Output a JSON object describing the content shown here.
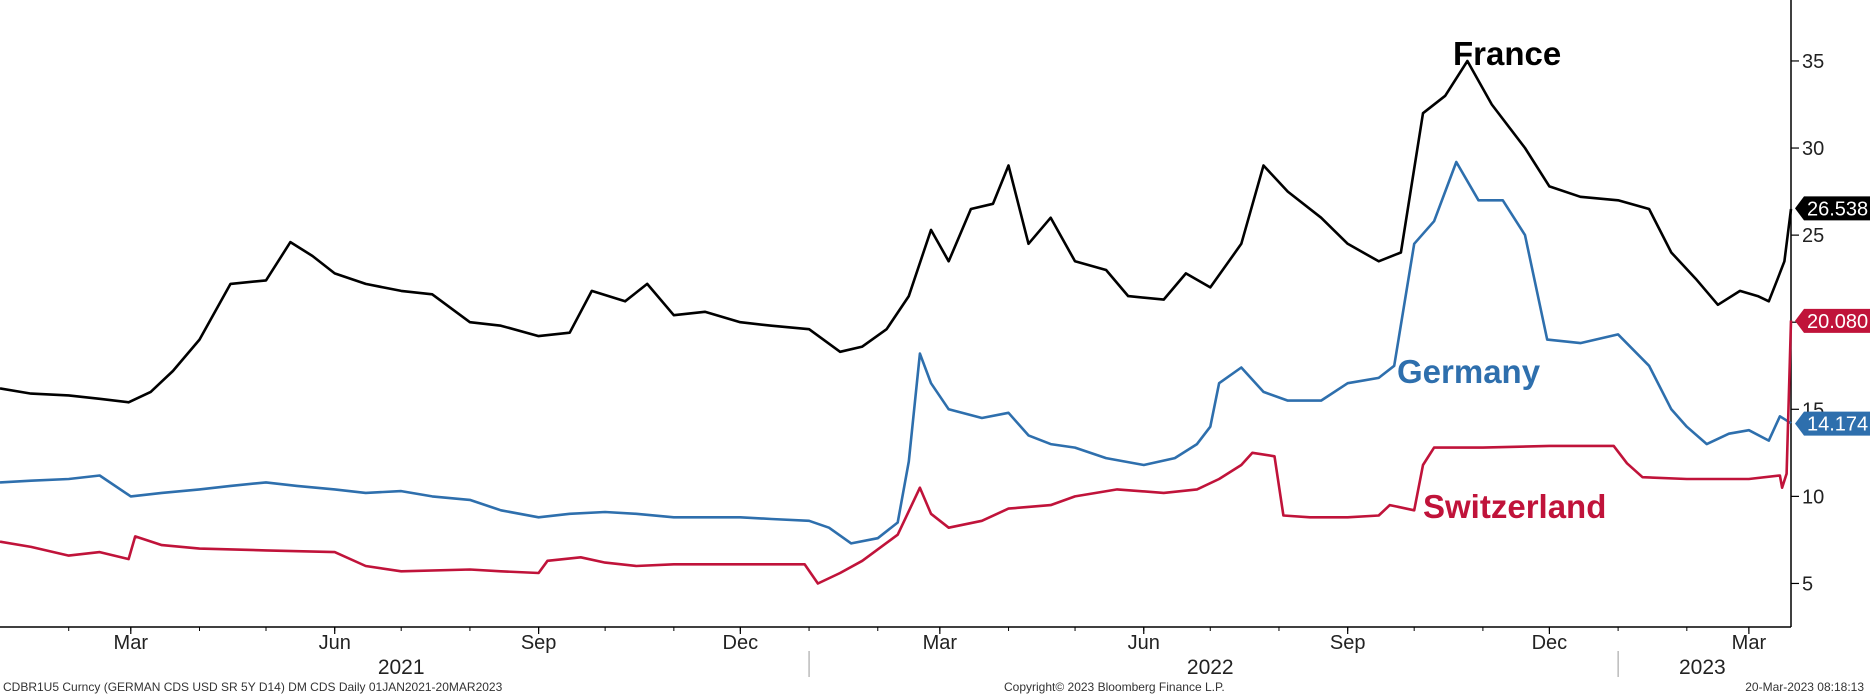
{
  "chart_data": {
    "type": "line",
    "x_range": [
      "2021-01-01",
      "2023-03-20"
    ],
    "ylim": [
      2.5,
      38.5
    ],
    "y_ticks": [
      5,
      10,
      15,
      20,
      25,
      30,
      35
    ],
    "x_ticks": [
      {
        "label": "Mar",
        "date": "2021-03-01"
      },
      {
        "label": "Jun",
        "date": "2021-06-01"
      },
      {
        "label": "Sep",
        "date": "2021-09-01"
      },
      {
        "label": "Dec",
        "date": "2021-12-01"
      },
      {
        "label": "Mar",
        "date": "2022-03-01"
      },
      {
        "label": "Jun",
        "date": "2022-06-01"
      },
      {
        "label": "Sep",
        "date": "2022-09-01"
      },
      {
        "label": "Dec",
        "date": "2022-12-01"
      },
      {
        "label": "Mar",
        "date": "2023-03-01"
      }
    ],
    "years": [
      {
        "label": "2021",
        "date": "2021-07-01"
      },
      {
        "label": "2022",
        "date": "2022-07-01"
      },
      {
        "label": "2023",
        "date": "2023-02-08"
      }
    ],
    "year_separators": [
      "2022-01-01",
      "2023-01-01"
    ],
    "grid": false,
    "y_axis_side": "right",
    "series": [
      {
        "name": "France",
        "color": "#000000",
        "last_value": "26.538",
        "points": [
          [
            "2021-01-01",
            16.2
          ],
          [
            "2021-01-15",
            15.9
          ],
          [
            "2021-02-01",
            15.8
          ],
          [
            "2021-02-15",
            15.6
          ],
          [
            "2021-02-28",
            15.4
          ],
          [
            "2021-03-10",
            16.0
          ],
          [
            "2021-03-20",
            17.2
          ],
          [
            "2021-04-01",
            19.0
          ],
          [
            "2021-04-15",
            22.2
          ],
          [
            "2021-05-01",
            22.4
          ],
          [
            "2021-05-12",
            24.6
          ],
          [
            "2021-05-22",
            23.8
          ],
          [
            "2021-06-01",
            22.8
          ],
          [
            "2021-06-15",
            22.2
          ],
          [
            "2021-07-01",
            21.8
          ],
          [
            "2021-07-15",
            21.6
          ],
          [
            "2021-08-01",
            20.0
          ],
          [
            "2021-08-15",
            19.8
          ],
          [
            "2021-09-01",
            19.2
          ],
          [
            "2021-09-15",
            19.4
          ],
          [
            "2021-09-25",
            21.8
          ],
          [
            "2021-10-10",
            21.2
          ],
          [
            "2021-10-20",
            22.2
          ],
          [
            "2021-11-01",
            20.4
          ],
          [
            "2021-11-15",
            20.6
          ],
          [
            "2021-12-01",
            20.0
          ],
          [
            "2021-12-15",
            19.8
          ],
          [
            "2022-01-01",
            19.6
          ],
          [
            "2022-01-15",
            18.3
          ],
          [
            "2022-01-25",
            18.6
          ],
          [
            "2022-02-05",
            19.6
          ],
          [
            "2022-02-15",
            21.5
          ],
          [
            "2022-02-25",
            25.3
          ],
          [
            "2022-03-05",
            23.5
          ],
          [
            "2022-03-15",
            26.5
          ],
          [
            "2022-03-25",
            26.8
          ],
          [
            "2022-04-01",
            29.0
          ],
          [
            "2022-04-10",
            24.5
          ],
          [
            "2022-04-20",
            26.0
          ],
          [
            "2022-05-01",
            23.5
          ],
          [
            "2022-05-15",
            23.0
          ],
          [
            "2022-05-25",
            21.5
          ],
          [
            "2022-06-10",
            21.3
          ],
          [
            "2022-06-20",
            22.8
          ],
          [
            "2022-07-01",
            22.0
          ],
          [
            "2022-07-15",
            24.5
          ],
          [
            "2022-07-25",
            29.0
          ],
          [
            "2022-08-05",
            27.5
          ],
          [
            "2022-08-20",
            26.0
          ],
          [
            "2022-09-01",
            24.5
          ],
          [
            "2022-09-15",
            23.5
          ],
          [
            "2022-09-25",
            24.0
          ],
          [
            "2022-10-05",
            32.0
          ],
          [
            "2022-10-15",
            33.0
          ],
          [
            "2022-10-25",
            35.0
          ],
          [
            "2022-11-05",
            32.5
          ],
          [
            "2022-11-20",
            30.0
          ],
          [
            "2022-12-01",
            27.8
          ],
          [
            "2022-12-15",
            27.2
          ],
          [
            "2023-01-01",
            27.0
          ],
          [
            "2023-01-15",
            26.5
          ],
          [
            "2023-01-25",
            24.0
          ],
          [
            "2023-02-05",
            22.5
          ],
          [
            "2023-02-15",
            21.0
          ],
          [
            "2023-02-25",
            21.8
          ],
          [
            "2023-03-05",
            21.5
          ],
          [
            "2023-03-10",
            21.2
          ],
          [
            "2023-03-14",
            22.5
          ],
          [
            "2023-03-17",
            23.5
          ],
          [
            "2023-03-20",
            26.5
          ]
        ]
      },
      {
        "name": "Germany",
        "color": "#2e6fad",
        "last_value": "14.174",
        "points": [
          [
            "2021-01-01",
            10.8
          ],
          [
            "2021-01-15",
            10.9
          ],
          [
            "2021-02-01",
            11.0
          ],
          [
            "2021-02-15",
            11.2
          ],
          [
            "2021-03-01",
            10.0
          ],
          [
            "2021-03-15",
            10.2
          ],
          [
            "2021-04-01",
            10.4
          ],
          [
            "2021-04-15",
            10.6
          ],
          [
            "2021-05-01",
            10.8
          ],
          [
            "2021-05-15",
            10.6
          ],
          [
            "2021-06-01",
            10.4
          ],
          [
            "2021-06-15",
            10.2
          ],
          [
            "2021-07-01",
            10.3
          ],
          [
            "2021-07-15",
            10.0
          ],
          [
            "2021-08-01",
            9.8
          ],
          [
            "2021-08-15",
            9.2
          ],
          [
            "2021-09-01",
            8.8
          ],
          [
            "2021-09-15",
            9.0
          ],
          [
            "2021-10-01",
            9.1
          ],
          [
            "2021-10-15",
            9.0
          ],
          [
            "2021-11-01",
            8.8
          ],
          [
            "2021-11-15",
            8.8
          ],
          [
            "2021-12-01",
            8.8
          ],
          [
            "2021-12-15",
            8.7
          ],
          [
            "2022-01-01",
            8.6
          ],
          [
            "2022-01-10",
            8.2
          ],
          [
            "2022-01-20",
            7.3
          ],
          [
            "2022-02-01",
            7.6
          ],
          [
            "2022-02-10",
            8.5
          ],
          [
            "2022-02-15",
            12.0
          ],
          [
            "2022-02-20",
            18.2
          ],
          [
            "2022-02-25",
            16.5
          ],
          [
            "2022-03-05",
            15.0
          ],
          [
            "2022-03-20",
            14.5
          ],
          [
            "2022-04-01",
            14.8
          ],
          [
            "2022-04-10",
            13.5
          ],
          [
            "2022-04-20",
            13.0
          ],
          [
            "2022-05-01",
            12.8
          ],
          [
            "2022-05-15",
            12.2
          ],
          [
            "2022-06-01",
            11.8
          ],
          [
            "2022-06-15",
            12.2
          ],
          [
            "2022-06-25",
            13.0
          ],
          [
            "2022-07-01",
            14.0
          ],
          [
            "2022-07-05",
            16.5
          ],
          [
            "2022-07-15",
            17.4
          ],
          [
            "2022-07-25",
            16.0
          ],
          [
            "2022-08-05",
            15.5
          ],
          [
            "2022-08-20",
            15.5
          ],
          [
            "2022-09-01",
            16.5
          ],
          [
            "2022-09-15",
            16.8
          ],
          [
            "2022-09-22",
            17.5
          ],
          [
            "2022-10-01",
            24.5
          ],
          [
            "2022-10-10",
            25.8
          ],
          [
            "2022-10-20",
            29.2
          ],
          [
            "2022-10-30",
            27.0
          ],
          [
            "2022-11-10",
            27.0
          ],
          [
            "2022-11-20",
            25.0
          ],
          [
            "2022-11-30",
            19.0
          ],
          [
            "2022-12-15",
            18.8
          ],
          [
            "2023-01-01",
            19.3
          ],
          [
            "2023-01-15",
            17.5
          ],
          [
            "2023-01-25",
            15.0
          ],
          [
            "2023-02-01",
            14.0
          ],
          [
            "2023-02-10",
            13.0
          ],
          [
            "2023-02-20",
            13.6
          ],
          [
            "2023-03-01",
            13.8
          ],
          [
            "2023-03-10",
            13.2
          ],
          [
            "2023-03-15",
            14.6
          ],
          [
            "2023-03-20",
            14.2
          ]
        ]
      },
      {
        "name": "Switzerland",
        "color": "#c0133a",
        "last_value": "20.080",
        "points": [
          [
            "2021-01-01",
            7.4
          ],
          [
            "2021-01-15",
            7.1
          ],
          [
            "2021-02-01",
            6.6
          ],
          [
            "2021-02-15",
            6.8
          ],
          [
            "2021-02-28",
            6.4
          ],
          [
            "2021-03-03",
            7.7
          ],
          [
            "2021-03-15",
            7.2
          ],
          [
            "2021-04-01",
            7.0
          ],
          [
            "2021-05-01",
            6.9
          ],
          [
            "2021-06-01",
            6.8
          ],
          [
            "2021-06-15",
            6.0
          ],
          [
            "2021-07-01",
            5.7
          ],
          [
            "2021-08-01",
            5.8
          ],
          [
            "2021-08-15",
            5.7
          ],
          [
            "2021-09-01",
            5.6
          ],
          [
            "2021-09-05",
            6.3
          ],
          [
            "2021-09-20",
            6.5
          ],
          [
            "2021-10-01",
            6.2
          ],
          [
            "2021-10-15",
            6.0
          ],
          [
            "2021-11-01",
            6.1
          ],
          [
            "2021-12-01",
            6.1
          ],
          [
            "2021-12-30",
            6.1
          ],
          [
            "2022-01-05",
            5.0
          ],
          [
            "2022-01-15",
            5.6
          ],
          [
            "2022-01-25",
            6.3
          ],
          [
            "2022-02-10",
            7.8
          ],
          [
            "2022-02-20",
            10.5
          ],
          [
            "2022-02-25",
            9.0
          ],
          [
            "2022-03-05",
            8.2
          ],
          [
            "2022-03-20",
            8.6
          ],
          [
            "2022-04-01",
            9.3
          ],
          [
            "2022-04-20",
            9.5
          ],
          [
            "2022-05-01",
            10.0
          ],
          [
            "2022-05-20",
            10.4
          ],
          [
            "2022-06-10",
            10.2
          ],
          [
            "2022-06-25",
            10.4
          ],
          [
            "2022-07-05",
            11.0
          ],
          [
            "2022-07-15",
            11.8
          ],
          [
            "2022-07-20",
            12.5
          ],
          [
            "2022-07-30",
            12.3
          ],
          [
            "2022-08-03",
            8.9
          ],
          [
            "2022-08-15",
            8.8
          ],
          [
            "2022-09-01",
            8.8
          ],
          [
            "2022-09-15",
            8.9
          ],
          [
            "2022-09-20",
            9.5
          ],
          [
            "2022-10-01",
            9.2
          ],
          [
            "2022-10-05",
            11.8
          ],
          [
            "2022-10-10",
            12.8
          ],
          [
            "2022-11-01",
            12.8
          ],
          [
            "2022-12-01",
            12.9
          ],
          [
            "2022-12-30",
            12.9
          ],
          [
            "2023-01-05",
            11.9
          ],
          [
            "2023-01-12",
            11.1
          ],
          [
            "2023-02-01",
            11.0
          ],
          [
            "2023-03-01",
            11.0
          ],
          [
            "2023-03-15",
            11.2
          ],
          [
            "2023-03-16",
            10.5
          ],
          [
            "2023-03-18",
            11.3
          ],
          [
            "2023-03-20",
            20.1
          ]
        ]
      }
    ]
  },
  "footer": {
    "left": "CDBR1U5 Curncy (GERMAN CDS USD SR 5Y D14) DM CDS  Daily 01JAN2021-20MAR2023",
    "center": "Copyright© 2023 Bloomberg Finance L.P.",
    "right": "20-Mar-2023 08:18:13"
  }
}
